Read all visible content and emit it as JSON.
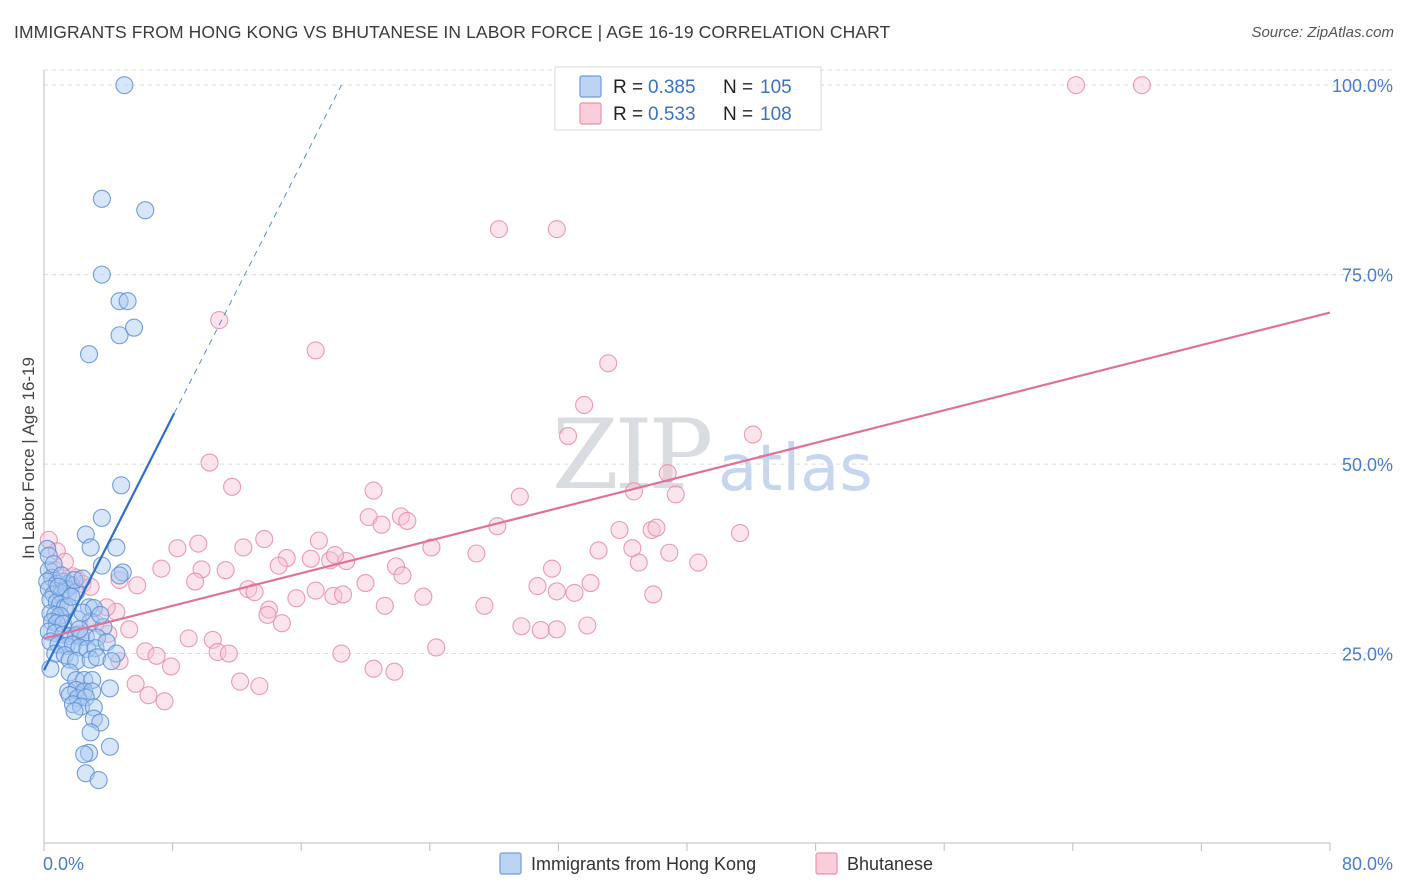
{
  "header": {
    "title": "IMMIGRANTS FROM HONG KONG VS BHUTANESE IN LABOR FORCE | AGE 16-19 CORRELATION CHART",
    "source": "Source: ZipAtlas.com"
  },
  "watermark": {
    "zip": "ZIP",
    "atlas": "atlas"
  },
  "legend": {
    "rows": [
      {
        "r_label": "R =",
        "r_value": "0.385",
        "n_label": "N =",
        "n_value": "105",
        "color": "#9dc0ef"
      },
      {
        "r_label": "R =",
        "r_value": "0.533",
        "n_label": "N =",
        "n_value": "108",
        "color": "#f5b8cb"
      }
    ]
  },
  "bottom_legend": [
    {
      "label": "Immigrants from Hong Kong",
      "color": "#9dc0ef"
    },
    {
      "label": "Bhutanese",
      "color": "#f5b8cb"
    }
  ],
  "colors": {
    "blue_fill": "#a9c8f1",
    "blue_stroke": "#5b8fd6",
    "blue_line": "#2f6fcc",
    "pink_fill": "#f7c3d3",
    "pink_stroke": "#e88ba8",
    "pink_line": "#e0729a",
    "grid": "#dcdcdc",
    "tick_text": "#4a7ec9"
  },
  "chart_data": {
    "type": "scatter",
    "title": "IMMIGRANTS FROM HONG KONG VS BHUTANESE IN LABOR FORCE | AGE 16-19 CORRELATION CHART",
    "xlabel": "",
    "ylabel": "In Labor Force | Age 16-19",
    "xlim": [
      0,
      80
    ],
    "ylim": [
      0,
      102
    ],
    "x_tick_labels": [
      "0.0%",
      "80.0%"
    ],
    "y_ticks": [
      25,
      50,
      75,
      100
    ],
    "y_tick_labels": [
      "25.0%",
      "50.0%",
      "75.0%",
      "100.0%"
    ],
    "series": [
      {
        "name": "Immigrants from Hong Kong",
        "R": 0.385,
        "N": 105,
        "trend": {
          "x0": 0.0,
          "y0": 22.8,
          "x1": 8.1,
          "y1": 56.7,
          "dash_to_x": 18.5,
          "dash_to_y": 100.0
        },
        "points": [
          [
            5.0,
            100.0
          ],
          [
            3.6,
            85.0
          ],
          [
            6.3,
            83.5
          ],
          [
            3.6,
            75.0
          ],
          [
            4.7,
            71.5
          ],
          [
            5.2,
            71.5
          ],
          [
            4.7,
            67.0
          ],
          [
            5.6,
            68.0
          ],
          [
            2.8,
            64.5
          ],
          [
            4.8,
            47.2
          ],
          [
            3.6,
            42.9
          ],
          [
            2.6,
            40.7
          ],
          [
            2.9,
            39.0
          ],
          [
            4.5,
            39.0
          ],
          [
            3.6,
            36.6
          ],
          [
            4.9,
            35.7
          ],
          [
            4.7,
            35.3
          ],
          [
            0.3,
            36.0
          ],
          [
            0.5,
            35.0
          ],
          [
            0.2,
            34.5
          ],
          [
            0.8,
            34.2
          ],
          [
            1.2,
            34.5
          ],
          [
            1.5,
            34.2
          ],
          [
            1.7,
            34.0
          ],
          [
            0.3,
            33.5
          ],
          [
            0.6,
            32.8
          ],
          [
            1.1,
            32.9
          ],
          [
            1.4,
            33.5
          ],
          [
            2.0,
            33.1
          ],
          [
            0.4,
            32.1
          ],
          [
            0.8,
            31.8
          ],
          [
            1.0,
            31.5
          ],
          [
            1.3,
            31.1
          ],
          [
            1.5,
            31.2
          ],
          [
            0.4,
            30.3
          ],
          [
            0.7,
            30.1
          ],
          [
            1.0,
            30.0
          ],
          [
            2.8,
            31.1
          ],
          [
            3.1,
            31.0
          ],
          [
            0.5,
            29.2
          ],
          [
            0.8,
            29.0
          ],
          [
            1.2,
            28.9
          ],
          [
            2.1,
            29.5
          ],
          [
            2.9,
            29.2
          ],
          [
            3.7,
            28.5
          ],
          [
            0.3,
            27.9
          ],
          [
            0.7,
            27.7
          ],
          [
            1.2,
            27.5
          ],
          [
            1.6,
            27.3
          ],
          [
            2.0,
            27.4
          ],
          [
            2.3,
            27.2
          ],
          [
            2.6,
            27.2
          ],
          [
            3.3,
            27.1
          ],
          [
            0.4,
            26.6
          ],
          [
            0.9,
            26.2
          ],
          [
            1.4,
            26.0
          ],
          [
            1.8,
            26.2
          ],
          [
            2.2,
            25.8
          ],
          [
            2.7,
            25.6
          ],
          [
            3.2,
            25.7
          ],
          [
            3.9,
            26.5
          ],
          [
            0.7,
            25.0
          ],
          [
            1.3,
            24.8
          ],
          [
            1.6,
            24.2
          ],
          [
            2.0,
            24.0
          ],
          [
            2.9,
            24.2
          ],
          [
            3.3,
            24.5
          ],
          [
            4.5,
            25.0
          ],
          [
            4.2,
            24.0
          ],
          [
            0.4,
            23.0
          ],
          [
            1.6,
            22.5
          ],
          [
            2.0,
            21.5
          ],
          [
            2.5,
            21.5
          ],
          [
            3.0,
            21.5
          ],
          [
            1.5,
            20.0
          ],
          [
            2.0,
            20.2
          ],
          [
            2.5,
            20.0
          ],
          [
            3.0,
            20.0
          ],
          [
            4.1,
            20.4
          ],
          [
            1.6,
            19.5
          ],
          [
            2.1,
            19.1
          ],
          [
            2.6,
            19.2
          ],
          [
            1.8,
            18.3
          ],
          [
            2.3,
            18.0
          ],
          [
            3.1,
            17.9
          ],
          [
            1.9,
            17.4
          ],
          [
            3.1,
            16.4
          ],
          [
            3.5,
            15.9
          ],
          [
            2.9,
            14.6
          ],
          [
            4.1,
            12.7
          ],
          [
            2.8,
            11.9
          ],
          [
            2.5,
            11.7
          ],
          [
            2.6,
            9.2
          ],
          [
            3.4,
            8.3
          ],
          [
            0.2,
            38.8
          ],
          [
            0.3,
            37.9
          ],
          [
            0.6,
            36.8
          ],
          [
            1.1,
            35.3
          ],
          [
            1.9,
            34.7
          ],
          [
            2.4,
            34.9
          ],
          [
            0.9,
            33.8
          ],
          [
            1.7,
            32.5
          ],
          [
            2.4,
            30.4
          ],
          [
            3.5,
            30.1
          ],
          [
            2.2,
            28.2
          ]
        ]
      },
      {
        "name": "Bhutanese",
        "R": 0.533,
        "N": 108,
        "trend": {
          "x0": 0.0,
          "y0": 27.0,
          "x1": 80.0,
          "y1": 70.0
        },
        "points": [
          [
            64.2,
            100.0
          ],
          [
            68.3,
            100.0
          ],
          [
            28.3,
            81.0
          ],
          [
            31.9,
            81.0
          ],
          [
            10.9,
            69.0
          ],
          [
            16.9,
            65.0
          ],
          [
            35.1,
            63.3
          ],
          [
            33.6,
            57.8
          ],
          [
            32.6,
            53.7
          ],
          [
            44.1,
            53.9
          ],
          [
            10.3,
            50.2
          ],
          [
            38.8,
            48.8
          ],
          [
            11.7,
            47.0
          ],
          [
            20.5,
            46.5
          ],
          [
            29.6,
            45.7
          ],
          [
            36.7,
            46.4
          ],
          [
            39.3,
            46.0
          ],
          [
            20.2,
            43.0
          ],
          [
            22.2,
            43.1
          ],
          [
            22.6,
            42.5
          ],
          [
            21.0,
            42.0
          ],
          [
            28.2,
            41.8
          ],
          [
            35.8,
            41.3
          ],
          [
            37.8,
            41.3
          ],
          [
            38.1,
            41.6
          ],
          [
            43.3,
            40.9
          ],
          [
            9.6,
            39.5
          ],
          [
            13.7,
            40.1
          ],
          [
            17.1,
            39.9
          ],
          [
            8.3,
            38.9
          ],
          [
            12.4,
            39.0
          ],
          [
            24.1,
            39.0
          ],
          [
            26.9,
            38.2
          ],
          [
            34.5,
            38.6
          ],
          [
            36.6,
            38.9
          ],
          [
            38.9,
            38.3
          ],
          [
            15.1,
            37.6
          ],
          [
            16.6,
            37.5
          ],
          [
            17.8,
            37.3
          ],
          [
            18.8,
            37.2
          ],
          [
            18.1,
            38.0
          ],
          [
            14.6,
            36.6
          ],
          [
            9.8,
            36.1
          ],
          [
            7.3,
            36.2
          ],
          [
            11.3,
            36.0
          ],
          [
            21.9,
            36.5
          ],
          [
            37.0,
            37.0
          ],
          [
            40.7,
            37.0
          ],
          [
            31.6,
            36.2
          ],
          [
            22.3,
            35.3
          ],
          [
            20.0,
            34.3
          ],
          [
            34.0,
            34.3
          ],
          [
            30.7,
            33.9
          ],
          [
            9.4,
            34.5
          ],
          [
            2.0,
            35.0
          ],
          [
            4.7,
            34.7
          ],
          [
            5.8,
            34.0
          ],
          [
            16.9,
            33.3
          ],
          [
            18.0,
            32.6
          ],
          [
            12.7,
            33.5
          ],
          [
            13.1,
            33.1
          ],
          [
            18.6,
            32.8
          ],
          [
            23.6,
            32.5
          ],
          [
            31.9,
            33.2
          ],
          [
            33.0,
            33.0
          ],
          [
            37.9,
            32.8
          ],
          [
            15.7,
            32.3
          ],
          [
            14.0,
            30.8
          ],
          [
            13.9,
            30.1
          ],
          [
            21.2,
            31.3
          ],
          [
            27.4,
            31.3
          ],
          [
            4.5,
            30.5
          ],
          [
            14.8,
            29.0
          ],
          [
            29.7,
            28.6
          ],
          [
            30.9,
            28.1
          ],
          [
            31.9,
            28.2
          ],
          [
            33.8,
            28.7
          ],
          [
            3.2,
            29.0
          ],
          [
            5.3,
            28.2
          ],
          [
            4.0,
            27.6
          ],
          [
            2.2,
            27.6
          ],
          [
            9.0,
            27.0
          ],
          [
            10.5,
            26.8
          ],
          [
            24.4,
            25.8
          ],
          [
            6.3,
            25.3
          ],
          [
            7.0,
            24.7
          ],
          [
            10.8,
            25.2
          ],
          [
            11.5,
            25.0
          ],
          [
            18.5,
            25.0
          ],
          [
            4.7,
            24.0
          ],
          [
            7.9,
            23.3
          ],
          [
            20.5,
            23.0
          ],
          [
            21.8,
            22.6
          ],
          [
            12.2,
            21.3
          ],
          [
            13.4,
            20.7
          ],
          [
            5.7,
            21.0
          ],
          [
            6.5,
            19.5
          ],
          [
            7.5,
            18.7
          ],
          [
            0.3,
            40.0
          ],
          [
            0.8,
            38.5
          ],
          [
            1.3,
            37.1
          ],
          [
            0.7,
            36.0
          ],
          [
            1.8,
            35.2
          ],
          [
            2.4,
            34.2
          ],
          [
            2.9,
            33.8
          ],
          [
            1.5,
            32.8
          ],
          [
            3.9,
            31.1
          ],
          [
            1.0,
            30.0
          ]
        ]
      }
    ]
  }
}
